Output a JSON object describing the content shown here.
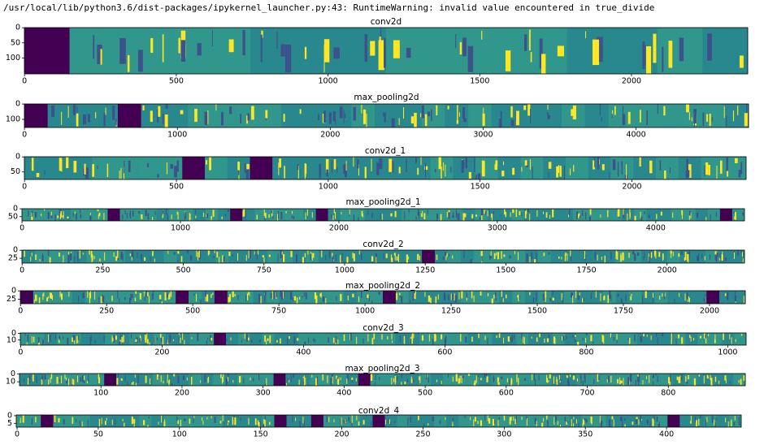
{
  "warning": "/usr/local/lib/python3.6/dist-packages/ipykernel_launcher.py:43: RuntimeWarning: invalid value encountered in true_divide",
  "chart_data": [
    {
      "type": "image",
      "title": "conv2d",
      "xlim": [
        -0.5,
        2383
      ],
      "ylim": [
        153,
        -0.5
      ],
      "xticks": [
        0,
        500,
        1000,
        1500,
        2000
      ],
      "yticks": [
        0,
        50,
        100
      ]
    },
    {
      "type": "image",
      "title": "max_pooling2d",
      "xlim": [
        -0.5,
        4736
      ],
      "ylim": [
        153,
        -0.5
      ],
      "xticks": [
        0,
        1000,
        2000,
        3000,
        4000
      ],
      "yticks": [
        0,
        100
      ]
    },
    {
      "type": "image",
      "title": "conv2d_1",
      "xlim": [
        -0.5,
        2376
      ],
      "ylim": [
        75,
        -0.5
      ],
      "xticks": [
        0,
        500,
        1000,
        1500,
        2000
      ],
      "yticks": [
        0,
        50
      ]
    },
    {
      "type": "image",
      "title": "max_pooling2d_1",
      "xlim": [
        -0.5,
        4560
      ],
      "ylim": [
        77,
        -0.5
      ],
      "xticks": [
        0,
        1000,
        2000,
        3000,
        4000
      ],
      "yticks": [
        0,
        50
      ]
    },
    {
      "type": "image",
      "title": "conv2d_2",
      "xlim": [
        -0.5,
        2240
      ],
      "ylim": [
        40,
        -0.5
      ],
      "xticks": [
        0,
        250,
        500,
        750,
        1000,
        1250,
        1500,
        1750,
        2000
      ],
      "yticks": [
        0,
        25
      ]
    },
    {
      "type": "image",
      "title": "max_pooling2d_2",
      "xlim": [
        -0.5,
        2104
      ],
      "ylim": [
        38,
        -0.5
      ],
      "xticks": [
        0,
        250,
        500,
        750,
        1000,
        1250,
        1500,
        1750,
        2000
      ],
      "yticks": [
        0,
        25
      ]
    },
    {
      "type": "image",
      "title": "conv2d_3",
      "xlim": [
        -0.5,
        1026
      ],
      "ylim": [
        17.5,
        -0.5
      ],
      "xticks": [
        0,
        200,
        400,
        600,
        800,
        1000
      ],
      "yticks": [
        0,
        10
      ]
    },
    {
      "type": "image",
      "title": "max_pooling2d_3",
      "xlim": [
        -0.5,
        895
      ],
      "ylim": [
        15,
        -0.5
      ],
      "xticks": [
        100,
        200,
        300,
        400,
        500,
        600,
        700,
        800
      ],
      "yticks": [
        0,
        10
      ]
    },
    {
      "type": "image",
      "title": "conv2d_4",
      "xlim": [
        -0.5,
        446
      ],
      "ylim": [
        7.5,
        -0.5
      ],
      "xticks": [
        0,
        50,
        100,
        150,
        200,
        250,
        300,
        350,
        400
      ],
      "yticks": [
        0,
        5
      ]
    }
  ]
}
